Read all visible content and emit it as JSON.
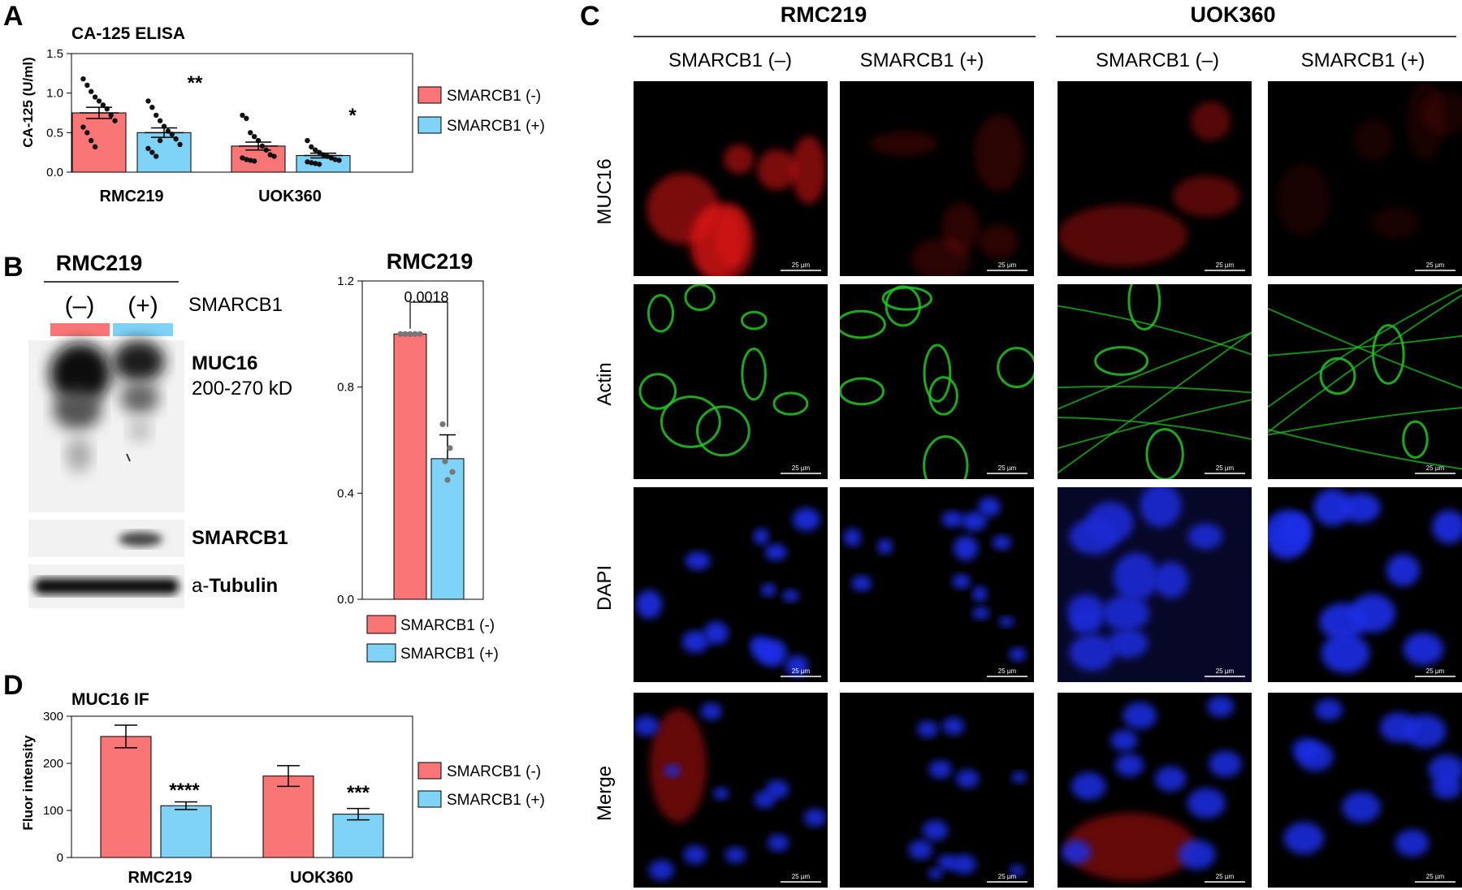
{
  "figure": {
    "panel_labels": {
      "a": "A",
      "b": "B",
      "c": "C",
      "d": "D"
    },
    "colors": {
      "neg": "#fa7676",
      "pos": "#7fd3f7",
      "green": "#22c522",
      "red": "#e01515",
      "blue": "#1f2fe6"
    }
  },
  "panel_a": {
    "legend": [
      "SMARCB1 (-)",
      "SMARCB1 (+)"
    ],
    "significance": [
      "**",
      "*"
    ],
    "tick_labels": [
      "0.0",
      "0.5",
      "1.0",
      "1.5"
    ]
  },
  "panel_b": {
    "header": "RMC219",
    "lanes": [
      "(–)",
      "(+)"
    ],
    "smarcb1_label": "SMARCB1",
    "bands": {
      "muc16": "MUC16",
      "muc16_size": "200-270 kD",
      "smarcb1": "SMARCB1",
      "tubulin_prefix": "a-",
      "tubulin": "Tubulin"
    },
    "legend": [
      "SMARCB1 (-)",
      "SMARCB1 (+)"
    ],
    "pvalue": "0.0018",
    "tick_labels": [
      "0.0",
      "0.4",
      "0.8",
      "1.2"
    ]
  },
  "panel_c": {
    "lines": [
      "RMC219",
      "UOK360"
    ],
    "conditions": [
      "SMARCB1 (–)",
      "SMARCB1 (+)",
      "SMARCB1 (–)",
      "SMARCB1 (+)"
    ],
    "rows": [
      "MUC16",
      "Actin",
      "DAPI",
      "Merge"
    ],
    "scale_bar": "25 µm"
  },
  "panel_d": {
    "legend": [
      "SMARCB1 (-)",
      "SMARCB1 (+)"
    ],
    "significance": [
      "****",
      "***"
    ],
    "tick_labels": [
      "0",
      "100",
      "200",
      "300"
    ]
  },
  "chart_data": [
    {
      "type": "bar",
      "panel": "A",
      "title": "CA-125 ELISA",
      "ylabel": "CA-125 (U/ml)",
      "ylim": [
        0,
        1.5
      ],
      "categories": [
        "RMC219",
        "UOK360"
      ],
      "series": [
        {
          "name": "SMARCB1 (-)",
          "values": [
            0.75,
            0.33
          ],
          "errors": [
            0.07,
            0.05
          ],
          "points": [
            [
              1.18,
              1.1,
              1.02,
              0.95,
              0.9,
              0.85,
              0.8,
              0.72,
              0.65,
              0.57,
              0.5,
              0.4,
              0.32
            ],
            [
              0.72,
              0.68,
              0.5,
              0.45,
              0.4,
              0.33,
              0.28,
              0.22,
              0.2,
              0.18,
              0.16,
              0.15,
              0.14
            ]
          ]
        },
        {
          "name": "SMARCB1 (+)",
          "values": [
            0.5,
            0.21
          ],
          "errors": [
            0.06,
            0.03
          ],
          "points": [
            [
              0.9,
              0.82,
              0.72,
              0.65,
              0.58,
              0.52,
              0.48,
              0.42,
              0.35,
              0.3,
              0.25,
              0.2,
              0.4
            ],
            [
              0.4,
              0.32,
              0.28,
              0.25,
              0.22,
              0.2,
              0.18,
              0.16,
              0.15,
              0.13,
              0.12,
              0.11,
              0.1
            ]
          ]
        }
      ]
    },
    {
      "type": "bar",
      "panel": "B",
      "title": "RMC219",
      "ylim": [
        0,
        1.2
      ],
      "categories": [
        "SMARCB1 (-)",
        "SMARCB1 (+)"
      ],
      "values": [
        1.0,
        0.53
      ],
      "errors": [
        0.0,
        0.09
      ],
      "points": [
        [
          1.0,
          1.0,
          1.0,
          1.0,
          1.0
        ],
        [
          0.66,
          0.57,
          0.52,
          0.48,
          0.45
        ]
      ]
    },
    {
      "type": "bar",
      "panel": "D",
      "title": "MUC16 IF",
      "ylabel": "Fluor intensity",
      "ylim": [
        0,
        300
      ],
      "categories": [
        "RMC219",
        "UOK360"
      ],
      "series": [
        {
          "name": "SMARCB1 (-)",
          "values": [
            257,
            173
          ],
          "errors": [
            24,
            22
          ]
        },
        {
          "name": "SMARCB1 (+)",
          "values": [
            110,
            92
          ],
          "errors": [
            8,
            12
          ]
        }
      ]
    }
  ]
}
